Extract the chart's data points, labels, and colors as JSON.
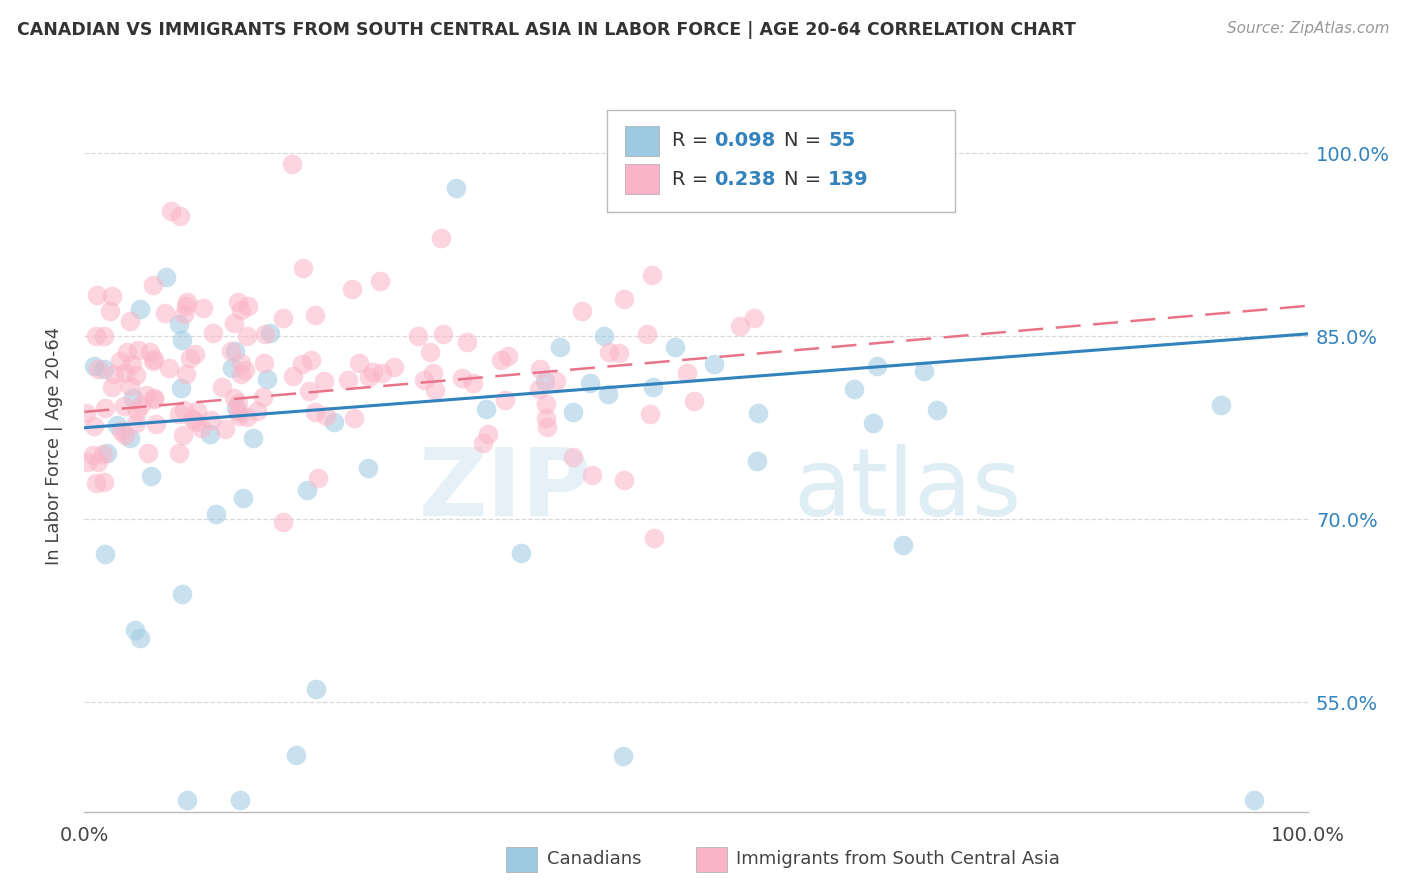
{
  "title": "CANADIAN VS IMMIGRANTS FROM SOUTH CENTRAL ASIA IN LABOR FORCE | AGE 20-64 CORRELATION CHART",
  "source": "Source: ZipAtlas.com",
  "ylabel": "In Labor Force | Age 20-64",
  "watermark_zip": "ZIP",
  "watermark_atlas": "atlas",
  "legend_entries": [
    "Canadians",
    "Immigrants from South Central Asia"
  ],
  "r_canadian": 0.098,
  "n_canadian": 55,
  "r_immigrant": 0.238,
  "n_immigrant": 139,
  "blue_color": "#9ecae1",
  "pink_color": "#fbb4c7",
  "blue_line_color": "#3182bd",
  "pink_line_color": "#e8748a",
  "xlim": [
    0.0,
    1.0
  ],
  "ylim": [
    0.46,
    1.06
  ],
  "yticks": [
    0.55,
    0.7,
    0.85,
    1.0
  ],
  "ytick_labels": [
    "55.0%",
    "70.0%",
    "85.0%",
    "100.0%"
  ],
  "xtick_labels": [
    "0.0%",
    "100.0%"
  ],
  "background_color": "#ffffff",
  "grid_color": "#d0d0d0"
}
